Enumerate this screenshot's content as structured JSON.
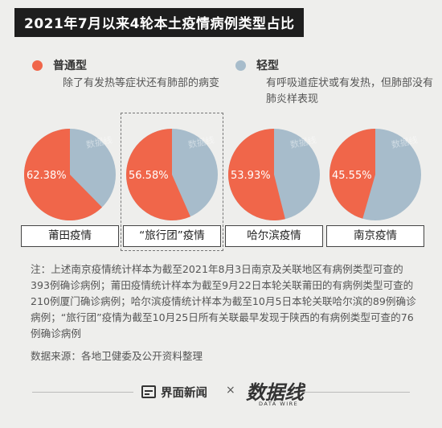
{
  "title": "2021年7月以来4轮本土疫情病例类型占比",
  "legend": [
    {
      "name": "普通型",
      "color": "#f0664a",
      "desc": "除了有发热等症状还有肺部的病变"
    },
    {
      "name": "轻型",
      "color": "#a7bccb",
      "desc": "有呼吸道症状或有发热，但肺部没有肺炎样表现"
    }
  ],
  "chart_data": {
    "type": "pie",
    "series_names": [
      "普通型",
      "轻型"
    ],
    "colors": {
      "普通型": "#f0664a",
      "轻型": "#a7bccb"
    },
    "pies": [
      {
        "label": "莆田疫情",
        "value_pct": 62.38,
        "value_text": "62.38%",
        "highlighted": false
      },
      {
        "label": "“旅行团”疫情",
        "value_pct": 56.58,
        "value_text": "56.58%",
        "highlighted": true
      },
      {
        "label": "哈尔滨疫情",
        "value_pct": 53.93,
        "value_text": "53.93%",
        "highlighted": false
      },
      {
        "label": "南京疫情",
        "value_pct": 45.55,
        "value_text": "45.55%",
        "highlighted": false
      }
    ]
  },
  "note": "注：上述南京疫情统计样本为截至2021年8月3日南京及关联地区有病例类型可查的393例确诊病例；莆田疫情统计样本为截至9月22日本轮关联莆田的有病例类型可查的210例厦门确诊病例；哈尔滨疫情统计样本为截至10月5日本轮关联哈尔滨的89例确诊病例；“旅行团”疫情为截至10月25日所有关联最早发现于陕西的有病例类型可查的76例确诊病例",
  "source": "数据来源：各地卫健委及公开资料整理",
  "footer": {
    "brand1": "界面新闻",
    "separator": "×",
    "brand2": "数据线",
    "brand2_sub": "DATA WIRE"
  },
  "watermark": "数据线"
}
